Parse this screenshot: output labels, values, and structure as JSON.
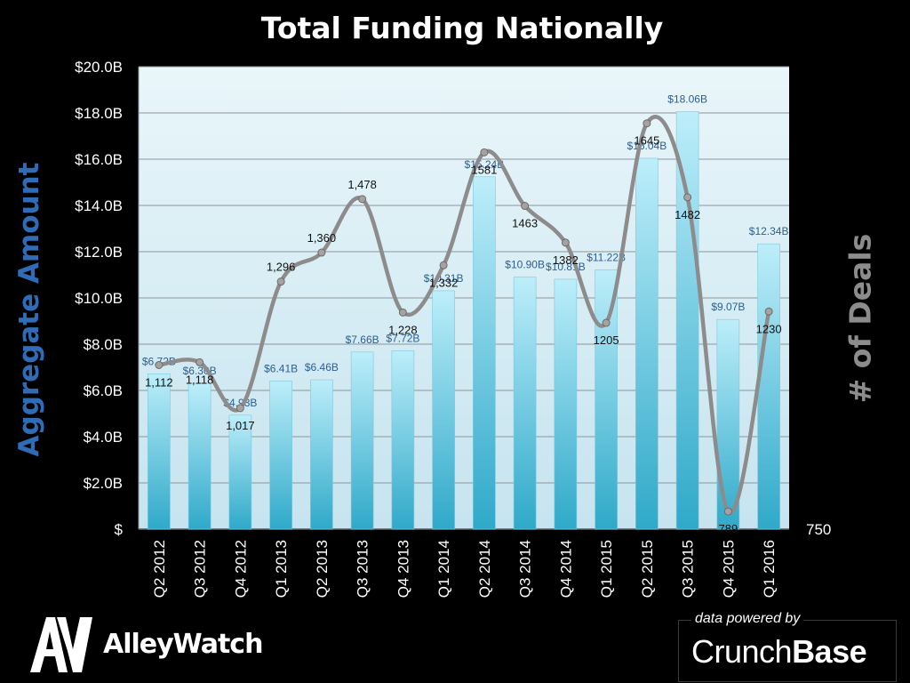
{
  "chart_data": {
    "type": "bar",
    "title": "Total Funding Nationally",
    "ylabel": "Aggregate  Amount",
    "y2label": "# of Deals",
    "categories": [
      "Q2 2012",
      "Q3 2012",
      "Q4 2012",
      "Q1 2013",
      "Q2 2013",
      "Q3 2013",
      "Q4 2013",
      "Q1 2014",
      "Q2 2014",
      "Q3 2014",
      "Q4 2014",
      "Q1 2015",
      "Q2 2015",
      "Q3 2015",
      "Q4 2015",
      "Q1 2016"
    ],
    "series": [
      {
        "name": "Aggregate Amount",
        "kind": "bar",
        "values": [
          6.72,
          6.3,
          4.93,
          6.41,
          6.46,
          7.66,
          7.72,
          10.31,
          15.24,
          10.9,
          10.81,
          11.22,
          16.04,
          18.06,
          9.07,
          12.34
        ],
        "labels": [
          "$6.72B",
          "$6.30B",
          "$4.93B",
          "$6.41B",
          "$6.46B",
          "$7.66B",
          "$7.72B",
          "$10.31B",
          "$15.24B",
          "$10.90B",
          "$10.81B",
          "$11.22B",
          "$16.04B",
          "$18.06B",
          "$9.07B",
          "$12.34B"
        ]
      },
      {
        "name": "# of Deals",
        "kind": "line",
        "values": [
          1112,
          1118,
          1017,
          1296,
          1360,
          1478,
          1228,
          1332,
          1581,
          1463,
          1382,
          1205,
          1645,
          1482,
          789,
          1230
        ],
        "labels": [
          "1,112",
          "1,118",
          "1,017",
          "1,296",
          "1,360",
          "1,478",
          "1,228",
          "1,332",
          "1581",
          "1463",
          "1382",
          "1205",
          "1645",
          "1482",
          "789",
          "1230"
        ]
      }
    ],
    "ylim": [
      0,
      20
    ],
    "y_ticks": [
      0,
      2,
      4,
      6,
      8,
      10,
      12,
      14,
      16,
      18,
      20
    ],
    "y_tick_labels": [
      "$",
      "$2.0B",
      "$4.0B",
      "$6.0B",
      "$8.0B",
      "$10.0B",
      "$12.0B",
      "$14.0B",
      "$16.0B",
      "$18.0B",
      "$20.0B"
    ],
    "y2_min": 750,
    "y2_tick_label": "750",
    "y2_max_estimated": 1770,
    "grid": true
  },
  "branding": {
    "logo_mark": "AW",
    "logo_name": "AlleyWatch",
    "credit_label": "data powered by",
    "credit_name_light": "Crunch",
    "credit_name_bold": "Base"
  },
  "colors": {
    "background": "#000000",
    "plot_bg_top": "#e9f6fa",
    "plot_bg_bottom": "#c6e4ef",
    "bar_top": "#bdeefa",
    "bar_bottom": "#2fa9c9",
    "line": "#8d8b8b",
    "marker": "#a6a2a2",
    "bar_label": "#2d5f8e",
    "left_title": "#2f6cb5",
    "right_title": "#8c8c8c"
  }
}
